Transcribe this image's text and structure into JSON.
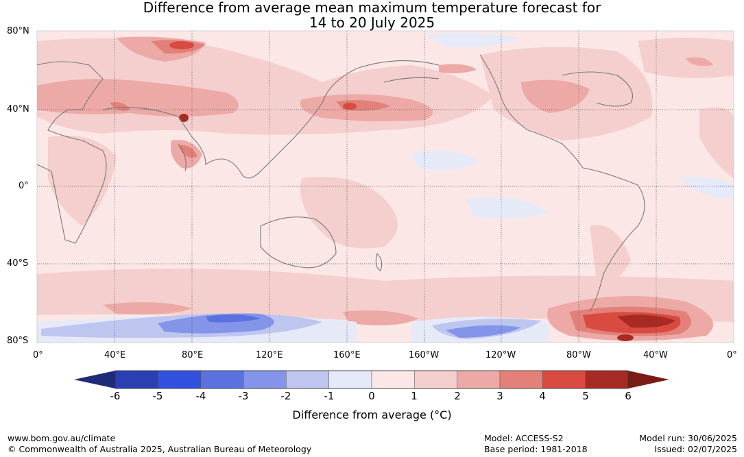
{
  "title": {
    "line1": "Difference from average mean maximum temperature forecast for",
    "line2": "14 to 20 July 2025"
  },
  "map": {
    "projection": "equirectangular",
    "lat_labels": [
      "80°N",
      "40°N",
      "0°",
      "40°S",
      "80°S"
    ],
    "lon_labels": [
      "0°",
      "40°E",
      "80°E",
      "120°E",
      "160°E",
      "160°W",
      "120°W",
      "80°W",
      "40°W",
      "0°"
    ],
    "anomaly_regions": [
      {
        "region": "Central Asia",
        "value": 2.5
      },
      {
        "region": "North Pacific",
        "value": 3
      },
      {
        "region": "India",
        "value": 3
      },
      {
        "region": "Antarctic coast south of Australia",
        "value": -2.5
      },
      {
        "region": "Ross Sea",
        "value": -2
      },
      {
        "region": "Southern Ocean south of South America",
        "value": 5
      }
    ]
  },
  "colorbar": {
    "ticks": [
      "-6",
      "-5",
      "-4",
      "-3",
      "-2",
      "-1",
      "0",
      "1",
      "2",
      "3",
      "4",
      "5",
      "6"
    ],
    "colors": [
      "#2a3fb1",
      "#3150e0",
      "#5a72e0",
      "#8494e8",
      "#bec6f0",
      "#e6eaf8",
      "#fbe8e6",
      "#f4cfcd",
      "#eca9a6",
      "#e4807a",
      "#d94a40",
      "#a82a24"
    ],
    "low_extend_color": "#1f2a78",
    "high_extend_color": "#7a1c16",
    "label": "Difference from average (°C)"
  },
  "footer": {
    "site": "www.bom.gov.au/climate",
    "copyright": "© Commonwealth of Australia 2025, Australian Bureau of Meteorology",
    "model": "Model: ACCESS-S2",
    "base_period": "Base period: 1981-2018",
    "model_run": "Model run: 30/06/2025",
    "issued": "Issued: 02/07/2025"
  }
}
